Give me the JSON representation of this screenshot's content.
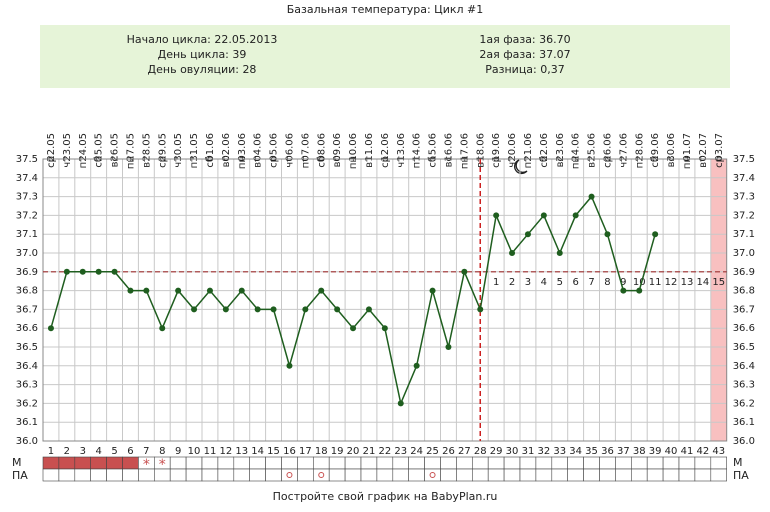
{
  "chart_data": {
    "type": "line",
    "title": "Базальная температура: Цикл #1",
    "info_left": [
      "Начало цикла: 22.05.2013",
      "День цикла: 39",
      "День овуляции: 28"
    ],
    "info_right": [
      "1ая фаза: 36.70",
      "2ая фаза: 37.07",
      "Разница: 0,37"
    ],
    "footer": "Постройте свой график на BabyPlan.ru",
    "categories": [
      1,
      2,
      3,
      4,
      5,
      6,
      7,
      8,
      9,
      10,
      11,
      12,
      13,
      14,
      15,
      16,
      17,
      18,
      19,
      20,
      21,
      22,
      23,
      24,
      25,
      26,
      27,
      28,
      29,
      30,
      31,
      32,
      33,
      34,
      35,
      36,
      37,
      38,
      39,
      40,
      41,
      42,
      43
    ],
    "dates": [
      "22.05",
      "23.05",
      "24.05",
      "25.05",
      "26.05",
      "27.05",
      "28.05",
      "29.05",
      "30.05",
      "31.05",
      "01.06",
      "02.06",
      "03.06",
      "04.06",
      "05.06",
      "06.06",
      "07.06",
      "08.06",
      "09.06",
      "10.06",
      "11.06",
      "12.06",
      "13.06",
      "14.06",
      "15.06",
      "16.06",
      "17.06",
      "18.06",
      "19.06",
      "20.06",
      "21.06",
      "22.06",
      "23.06",
      "24.06",
      "25.06",
      "26.06",
      "27.06",
      "28.06",
      "29.06",
      "30.06",
      "01.07",
      "02.07",
      "03.07"
    ],
    "weekdays": [
      "ср",
      "чт",
      "пт",
      "сб",
      "вс",
      "пн",
      "вт",
      "ср",
      "чт",
      "пт",
      "сб",
      "вс",
      "пн",
      "вт",
      "ср",
      "чт",
      "пт",
      "сб",
      "вс",
      "пн",
      "вт",
      "ср",
      "чт",
      "пт",
      "сб",
      "вс",
      "пн",
      "вт",
      "ср",
      "чт",
      "пт",
      "сб",
      "вс",
      "пн",
      "вт",
      "ср",
      "чт",
      "пт",
      "сб",
      "вс",
      "пн",
      "вт",
      "ср"
    ],
    "values": [
      36.6,
      36.9,
      36.9,
      36.9,
      36.9,
      36.8,
      36.8,
      36.6,
      36.8,
      36.7,
      36.8,
      36.7,
      36.8,
      36.7,
      36.7,
      36.4,
      36.7,
      36.8,
      36.7,
      36.6,
      36.7,
      36.6,
      36.2,
      36.4,
      36.8,
      36.5,
      36.9,
      36.7,
      37.2,
      37.0,
      37.1,
      37.2,
      37.0,
      37.2,
      37.3,
      37.1,
      36.8,
      36.8,
      37.1,
      null,
      null,
      null,
      null
    ],
    "color": "#1f5e1f",
    "phase_labels": [
      null,
      null,
      null,
      null,
      null,
      null,
      null,
      null,
      null,
      null,
      null,
      null,
      null,
      null,
      null,
      null,
      null,
      null,
      null,
      null,
      null,
      null,
      null,
      null,
      null,
      null,
      null,
      null,
      1,
      2,
      3,
      4,
      5,
      6,
      7,
      8,
      9,
      10,
      11,
      12,
      13,
      14,
      15
    ],
    "coverline": 36.9,
    "coverline_color": "#a03030",
    "ovulation_day": 28,
    "ovulation_color": "#cc2020",
    "highlight_day": 43,
    "ylim": [
      36.0,
      37.5
    ],
    "yticks": [
      {
        "value": 36.0,
        "label": "36.0"
      },
      36.1,
      36.2,
      36.3,
      36.4,
      36.5,
      36.6,
      36.7,
      36.8,
      36.9,
      {
        "value": 37.0,
        "label": "37.0"
      },
      37.1,
      37.2,
      37.3,
      37.4,
      37.5
    ],
    "grid": true,
    "row_labels": [
      "М",
      "ПА"
    ],
    "m_filled_days": [
      1,
      2,
      3,
      4,
      5,
      6
    ],
    "m_star_days": [
      7,
      8
    ],
    "m_star_symbol": "*",
    "pa_days": [
      16,
      18,
      25
    ]
  }
}
